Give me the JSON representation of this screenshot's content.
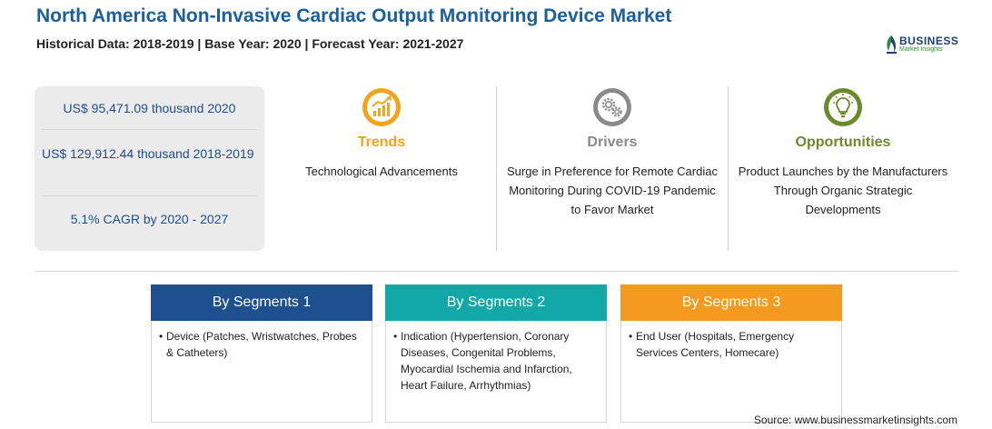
{
  "header": {
    "title": "North America Non-Invasive Cardiac Output Monitoring Device Market",
    "subtitle": "Historical Data: 2018-2019 | Base Year: 2020 | Forecast Year: 2021-2027"
  },
  "logo": {
    "name": "BUSINESS",
    "tagline": "Market Insights",
    "color": "#1c3f78",
    "accent": "#2d8c3c"
  },
  "stats": {
    "market_value_2020": "US$ 95,471.09 thousand 2020",
    "market_value_hist": "US$ 129,912.44 thousand 2018-2019",
    "cagr": "5.1% CAGR by 2020 - 2027"
  },
  "factors": [
    {
      "heading": "Trends",
      "text": "Technological Advancements",
      "icon": "trend-chart-icon",
      "color": "#f4a31b"
    },
    {
      "heading": "Drivers",
      "text": "Surge in Preference for Remote Cardiac Monitoring During COVID-19 Pandemic to Favor Market",
      "icon": "gears-icon",
      "color": "#8a8a8a"
    },
    {
      "heading": "Opportunities",
      "text": "Product Launches by the Manufacturers Through Organic Strategic Developments",
      "icon": "lightbulb-icon",
      "color": "#6b8a2a"
    }
  ],
  "segments": [
    {
      "heading": "By Segments 1",
      "bullet": "•",
      "text": "Device (Patches, Wristwatches, Probes & Catheters)",
      "color": "#1e4f8f"
    },
    {
      "heading": "By Segments 2",
      "bullet": "•",
      "text": "Indication (Hypertension, Coronary Diseases, Congenital Problems, Myocardial Ischemia and Infarction, Heart Failure, Arrhythmias)",
      "color": "#13a8a8"
    },
    {
      "heading": "By Segments 3",
      "bullet": "•",
      "text": "End User (Hospitals, Emergency Services Centers, Homecare)",
      "color": "#f49a1e"
    }
  ],
  "source": "Source: www.businessmarketinsights.com"
}
